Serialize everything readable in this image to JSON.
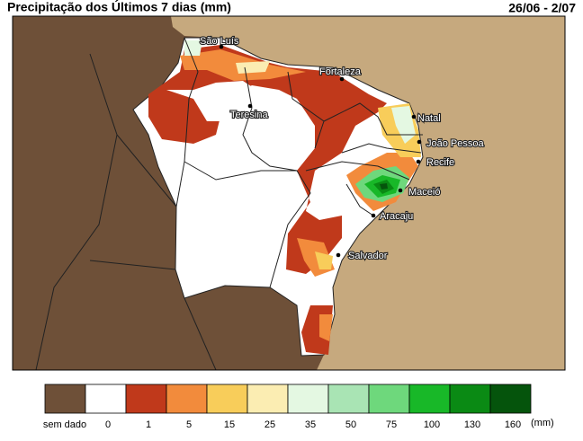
{
  "header": {
    "title": "Precipitação dos Últimos 7 dias (mm)",
    "period": "26/06 - 2/07"
  },
  "cities": [
    "São Luís",
    "Fortaleza",
    "Teresina",
    "Natal",
    "João Pessoa",
    "Recife",
    "Maceió",
    "Aracaju",
    "Salvador"
  ],
  "legend": {
    "labels": [
      "sem dado",
      "0",
      "1",
      "5",
      "15",
      "25",
      "35",
      "50",
      "75",
      "100",
      "130",
      "160"
    ],
    "unit": "(mm)",
    "colors": [
      "#6e5038",
      "#ffffff",
      "#c0391b",
      "#f28b3c",
      "#f8cd5a",
      "#fbedb2",
      "#e4f8e2",
      "#a9e4b4",
      "#6ed87c",
      "#18b828",
      "#0a8a14",
      "#05540c"
    ]
  }
}
